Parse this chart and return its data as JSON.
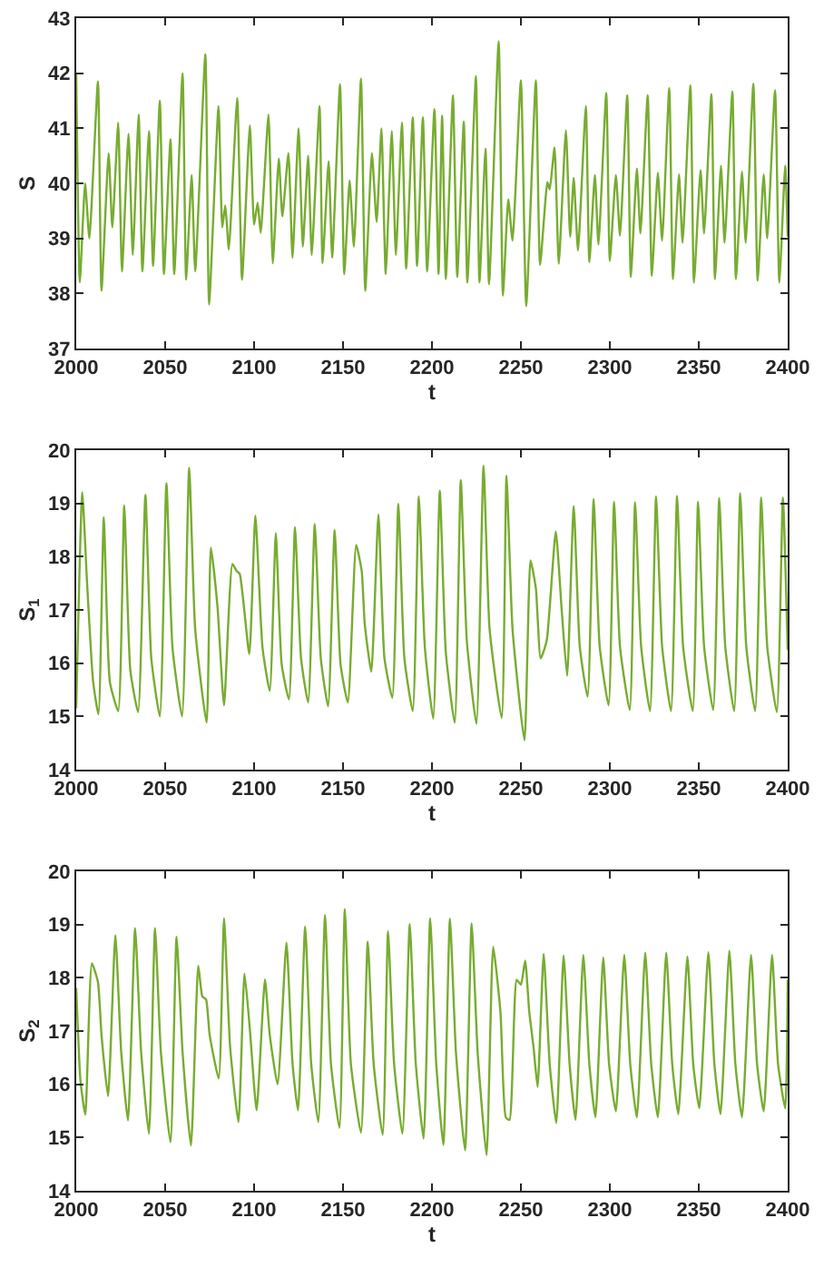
{
  "chart_data": [
    {
      "type": "line",
      "xlabel": "t",
      "ylabel": "S",
      "color": "#77ac30",
      "xlim": [
        2000,
        2400
      ],
      "xticks": [
        2000,
        2050,
        2100,
        2150,
        2200,
        2250,
        2300,
        2350,
        2400
      ],
      "ylim": [
        37,
        43
      ],
      "yticks": [
        37,
        38,
        39,
        40,
        41,
        42,
        43
      ],
      "grid": false,
      "x": [
        2000,
        2002,
        2005,
        2007.4,
        2012.2,
        2014.2,
        2018.2,
        2020.3,
        2023.6,
        2025.7,
        2029.4,
        2031.8,
        2035.1,
        2037.2,
        2040.9,
        2043.2,
        2047,
        2049.3,
        2053,
        2055.1,
        2059.8,
        2061.8,
        2064.9,
        2066.9,
        2072.6,
        2074.7,
        2080,
        2082.1,
        2083.8,
        2085.8,
        2090.5,
        2093.2,
        2097.6,
        2100,
        2102,
        2103.7,
        2108.1,
        2110.5,
        2113.9,
        2115.9,
        2119.3,
        2121.6,
        2125,
        2127.4,
        2130.4,
        2132.4,
        2136.8,
        2138.5,
        2141.9,
        2143.9,
        2148.3,
        2150.7,
        2153.7,
        2156.1,
        2160.1,
        2162.5,
        2166.2,
        2168.9,
        2171.6,
        2174,
        2177.4,
        2179.7,
        2183.1,
        2185.5,
        2189.2,
        2191.6,
        2194.9,
        2197.3,
        2201.4,
        2203.7,
        2205.7,
        2207.8,
        2211.8,
        2214.2,
        2217.9,
        2219.9,
        2224.7,
        2226.7,
        2230.1,
        2232.1,
        2237.5,
        2239.9,
        2242.9,
        2245.3,
        2250,
        2253,
        2258.4,
        2260.8,
        2264.9,
        2266.2,
        2268.9,
        2271.3,
        2275.3,
        2277.7,
        2279.7,
        2282.1,
        2286.5,
        2288.5,
        2291.6,
        2293.6,
        2298,
        2300,
        2303.4,
        2305.7,
        2309.8,
        2311.8,
        2315.2,
        2317.2,
        2321.3,
        2323.6,
        2327,
        2329.4,
        2333.4,
        2335.5,
        2338.9,
        2340.9,
        2345.3,
        2347.3,
        2351,
        2353,
        2357.1,
        2359.1,
        2362.5,
        2364.5,
        2368.9,
        2370.9,
        2374.3,
        2376.4,
        2380.7,
        2383.1,
        2386.5,
        2388.5,
        2392.9,
        2395.3,
        2398.6,
        2400
      ],
      "values": [
        42.0,
        38.2,
        40.0,
        39.0,
        41.85,
        38.05,
        40.55,
        39.2,
        41.1,
        38.4,
        40.9,
        38.7,
        41.25,
        38.4,
        40.95,
        38.5,
        41.5,
        38.35,
        40.8,
        38.35,
        42.0,
        38.25,
        40.15,
        38.4,
        42.35,
        37.8,
        41.4,
        39.2,
        39.6,
        38.8,
        41.55,
        38.25,
        41.05,
        39.25,
        39.65,
        39.1,
        41.25,
        38.55,
        40.45,
        39.4,
        40.55,
        38.65,
        41.0,
        38.85,
        40.5,
        38.7,
        41.4,
        38.55,
        40.4,
        38.65,
        41.8,
        38.35,
        40.05,
        38.85,
        41.9,
        38.05,
        40.55,
        39.3,
        41.0,
        38.35,
        40.95,
        38.7,
        41.1,
        38.45,
        41.2,
        38.5,
        41.2,
        38.4,
        41.35,
        38.35,
        41.23,
        38.26,
        41.6,
        38.3,
        41.12,
        38.2,
        41.95,
        38.2,
        40.63,
        38.17,
        42.58,
        37.96,
        39.71,
        38.96,
        41.87,
        37.77,
        41.87,
        38.52,
        40.02,
        39.89,
        40.65,
        38.54,
        40.96,
        39.03,
        40.1,
        38.78,
        41.4,
        38.57,
        40.15,
        38.89,
        41.64,
        38.59,
        40.15,
        39.05,
        41.6,
        38.3,
        40.27,
        39.09,
        41.6,
        38.32,
        40.19,
        38.96,
        41.73,
        38.26,
        40.16,
        38.92,
        41.78,
        38.2,
        40.24,
        39.09,
        41.62,
        38.26,
        40.32,
        38.92,
        41.67,
        38.26,
        40.21,
        38.92,
        41.81,
        38.23,
        40.16,
        39.0,
        41.69,
        38.2,
        40.32,
        39.03
      ]
    },
    {
      "type": "line",
      "xlabel": "t",
      "ylabel": "S$_{1}$",
      "color": "#77ac30",
      "xlim": [
        2000,
        2400
      ],
      "xticks": [
        2000,
        2050,
        2100,
        2150,
        2200,
        2250,
        2300,
        2350,
        2400
      ],
      "ylim": [
        14,
        20
      ],
      "yticks": [
        14,
        15,
        16,
        17,
        18,
        19,
        20
      ],
      "grid": false,
      "x": [
        2000,
        2003.4,
        2006.1,
        2009.5,
        2012.5,
        2015.5,
        2018.9,
        2023.6,
        2027,
        2030.4,
        2034.8,
        2038.9,
        2042.2,
        2047,
        2050.7,
        2054.1,
        2059.5,
        2063.5,
        2066.9,
        2073.3,
        2075.7,
        2079.4,
        2083.1,
        2087.8,
        2090.2,
        2091.9,
        2097.3,
        2100.7,
        2104.7,
        2108.8,
        2112.2,
        2115.5,
        2119.6,
        2123,
        2126.4,
        2130.4,
        2134.1,
        2137.5,
        2141.6,
        2145.3,
        2148.6,
        2152.7,
        2157.4,
        2160.5,
        2162.2,
        2165.9,
        2169.9,
        2173.3,
        2177.7,
        2181.1,
        2184.5,
        2189.2,
        2192.6,
        2196,
        2200.7,
        2204.4,
        2207.8,
        2212.8,
        2216.2,
        2219.6,
        2225,
        2229,
        2232.4,
        2239.2,
        2241.9,
        2245.3,
        2252,
        2255.4,
        2258.4,
        2261.1,
        2264.5,
        2269.6,
        2273,
        2276,
        2279.7,
        2283.1,
        2287.5,
        2290.9,
        2294.3,
        2299.3,
        2302.4,
        2305.7,
        2311.2,
        2314.2,
        2317.6,
        2322.6,
        2326,
        2329.4,
        2334.4,
        2337.8,
        2341.2,
        2346.6,
        2349.6,
        2353,
        2358.1,
        2361.5,
        2364.9,
        2369.9,
        2373.3,
        2376.7,
        2381.7,
        2385.1,
        2388.5,
        2393.9,
        2397.3,
        2400
      ],
      "values": [
        15.15,
        19.21,
        17.5,
        15.65,
        15.04,
        18.74,
        15.65,
        15.1,
        18.96,
        15.87,
        15.08,
        19.16,
        16.09,
        15.0,
        19.38,
        16.3,
        15.0,
        19.67,
        16.63,
        14.88,
        18.17,
        17.07,
        15.21,
        17.86,
        17.73,
        17.68,
        16.17,
        18.77,
        16.3,
        15.48,
        18.44,
        15.98,
        15.32,
        18.55,
        16.09,
        15.26,
        18.61,
        16.09,
        15.19,
        18.5,
        15.98,
        15.26,
        18.22,
        17.73,
        16.74,
        15.84,
        18.79,
        16.09,
        15.35,
        18.99,
        16.09,
        15.1,
        19.13,
        16.3,
        14.96,
        19.24,
        16.2,
        14.88,
        19.44,
        16.42,
        14.86,
        19.71,
        16.64,
        14.97,
        19.52,
        16.64,
        14.55,
        17.93,
        17.41,
        16.09,
        16.42,
        18.47,
        16.97,
        15.76,
        18.95,
        16.31,
        15.37,
        19.08,
        16.31,
        15.21,
        19.03,
        16.31,
        15.12,
        19.02,
        16.31,
        15.1,
        19.13,
        16.31,
        15.1,
        19.14,
        16.31,
        15.1,
        19.03,
        16.31,
        15.12,
        19.1,
        16.31,
        15.1,
        19.19,
        16.31,
        15.1,
        19.11,
        16.31,
        15.08,
        19.11,
        16.25
      ]
    },
    {
      "type": "line",
      "xlabel": "t",
      "ylabel": "S$_{2}$",
      "color": "#77ac30",
      "xlim": [
        2000,
        2400
      ],
      "xticks": [
        2000,
        2050,
        2100,
        2150,
        2200,
        2250,
        2300,
        2350,
        2400
      ],
      "ylim": [
        14,
        20
      ],
      "yticks": [
        14,
        15,
        16,
        17,
        18,
        19,
        20
      ],
      "grid": false,
      "x": [
        2000,
        2002.4,
        2005.1,
        2008.8,
        2012.2,
        2014.2,
        2017.9,
        2022,
        2025.3,
        2029.1,
        2033.1,
        2036.5,
        2040.9,
        2044.3,
        2047.6,
        2053,
        2056.4,
        2059.8,
        2064.5,
        2068.6,
        2070.9,
        2073,
        2075,
        2080.1,
        2083.1,
        2086.5,
        2091.2,
        2094.6,
        2097.6,
        2101.4,
        2106.1,
        2108.8,
        2113.2,
        2118.2,
        2121.6,
        2124.7,
        2128.7,
        2132.1,
        2136.1,
        2139.9,
        2143.2,
        2148,
        2151,
        2154.4,
        2160.1,
        2163.9,
        2167.2,
        2172.3,
        2175.3,
        2178.7,
        2183.4,
        2187.5,
        2190.9,
        2195.3,
        2199,
        2202.4,
        2206.4,
        2210.1,
        2213.5,
        2218.6,
        2222.3,
        2225.7,
        2230.7,
        2234.4,
        2238.5,
        2241.5,
        2243.6,
        2247.6,
        2250,
        2252.4,
        2254.7,
        2257.1,
        2259.4,
        2262.8,
        2266.2,
        2269.9,
        2274,
        2277.4,
        2280.7,
        2285.1,
        2288.5,
        2291.9,
        2296.3,
        2299.6,
        2303.4,
        2308.1,
        2311.5,
        2315.2,
        2319.9,
        2323.3,
        2327,
        2331.7,
        2335.1,
        2338.5,
        2343.6,
        2346.9,
        2350.3,
        2355.4,
        2358.8,
        2362.2,
        2367.2,
        2370.6,
        2374.3,
        2379.4,
        2382.8,
        2386.5,
        2391.2,
        2394.6,
        2398.6,
        2400
      ],
      "values": [
        17.81,
        16.06,
        15.43,
        18.27,
        17.92,
        16.93,
        15.78,
        18.8,
        16.6,
        15.32,
        18.93,
        16.6,
        15.07,
        18.93,
        16.6,
        14.91,
        18.77,
        16.6,
        14.85,
        18.23,
        17.65,
        17.59,
        16.93,
        16.11,
        19.12,
        16.71,
        15.29,
        18.08,
        17.04,
        15.51,
        17.97,
        16.93,
        16.0,
        18.66,
        16.39,
        15.51,
        18.96,
        16.39,
        15.29,
        19.18,
        16.39,
        15.18,
        19.29,
        16.39,
        15.09,
        18.68,
        16.39,
        15.05,
        18.87,
        16.39,
        15.07,
        19.01,
        16.39,
        14.98,
        19.12,
        16.39,
        14.86,
        19.11,
        16.59,
        14.76,
        19.02,
        16.59,
        14.67,
        18.58,
        17.36,
        15.38,
        15.33,
        17.96,
        17.87,
        18.32,
        17.36,
        16.7,
        15.95,
        18.45,
        16.37,
        15.27,
        18.42,
        16.37,
        15.33,
        18.43,
        16.37,
        15.38,
        18.38,
        16.37,
        15.49,
        18.43,
        16.37,
        15.38,
        18.47,
        16.37,
        15.38,
        18.47,
        16.37,
        15.44,
        18.4,
        16.37,
        15.55,
        18.48,
        16.37,
        15.44,
        18.51,
        16.37,
        15.38,
        18.43,
        16.37,
        15.49,
        18.43,
        16.37,
        15.55,
        17.96
      ]
    }
  ]
}
